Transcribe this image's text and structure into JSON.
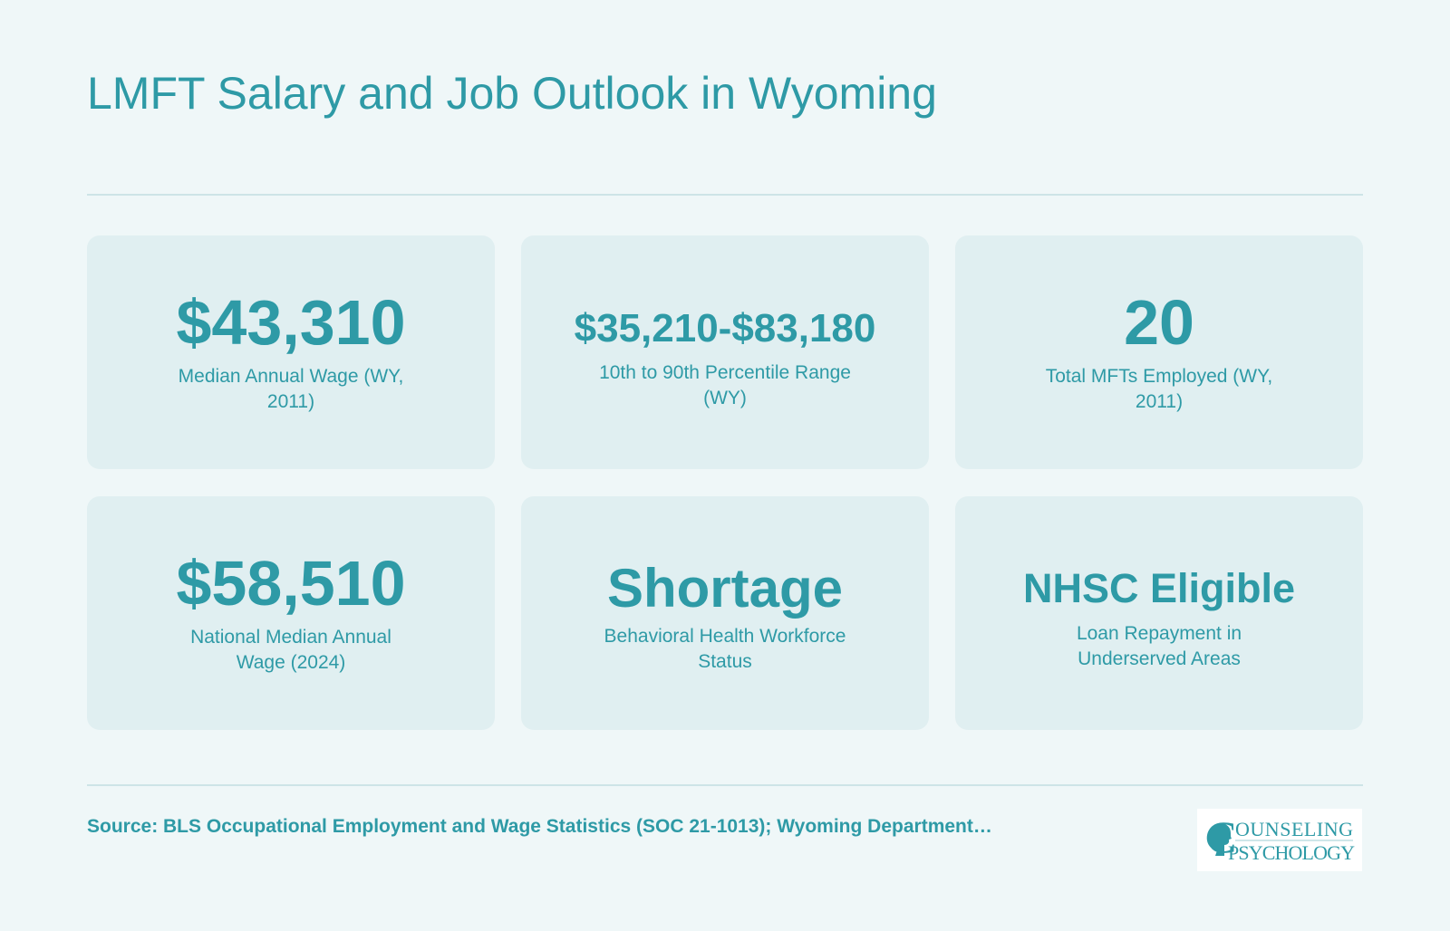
{
  "header": {
    "title": "LMFT Salary and Job Outlook in Wyoming"
  },
  "cards": [
    {
      "value": "$43,310",
      "label": "Median Annual Wage (WY, 2011)"
    },
    {
      "value": "$35,210-$83,180",
      "label": "10th to 90th Percentile Range (WY)"
    },
    {
      "value": "20",
      "label": "Total MFTs Employed (WY, 2011)"
    },
    {
      "value": "$58,510",
      "label": "National Median Annual Wage (2024)"
    },
    {
      "value": "Shortage",
      "label": "Behavioral Health Workforce Status"
    },
    {
      "value": "NHSC Eligible",
      "label": "Loan Repayment in Underserved Areas"
    }
  ],
  "footer": {
    "source": "Source: BLS Occupational Employment and Wage Statistics (SOC 21-1013); Wyoming Department…",
    "logo": {
      "initial": "C",
      "top": "OUNSELING",
      "bottom": "PSYCHOLOGY"
    }
  }
}
